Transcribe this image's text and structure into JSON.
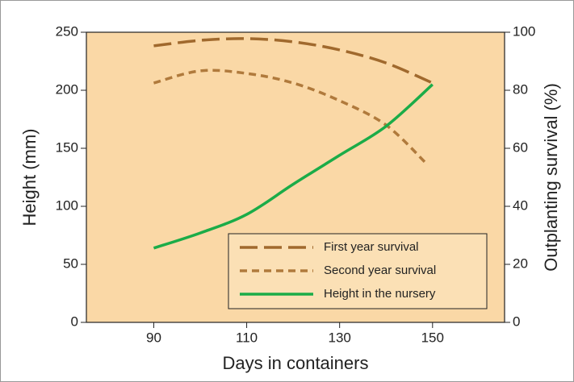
{
  "chart_data": {
    "type": "line",
    "xlabel": "Days in containers",
    "ylabel": "Height (mm)",
    "y2label": "Outplanting survival (%)",
    "xlim": [
      75.5,
      165.5
    ],
    "xticks": [
      90,
      110,
      130,
      150
    ],
    "ylim": [
      0,
      250
    ],
    "yticks": [
      0,
      50,
      100,
      150,
      200,
      250
    ],
    "y2lim": [
      0,
      100
    ],
    "y2ticks": [
      0,
      20,
      40,
      60,
      80,
      100
    ],
    "legend": "lower right",
    "series": [
      {
        "name": "First year survival",
        "color": "#a0692d",
        "style": "long-dash",
        "axis": "y2",
        "x": [
          90,
          100,
          110,
          120,
          130,
          140,
          150
        ],
        "values": [
          95.3,
          97.2,
          97.8,
          96.7,
          93.9,
          89.4,
          82.5
        ]
      },
      {
        "name": "Second year survival",
        "color": "#b07a3c",
        "style": "short-dash",
        "axis": "y2",
        "x": [
          90,
          100,
          110,
          120,
          130,
          140,
          148.7
        ],
        "values": [
          82.5,
          86.7,
          85.8,
          82.5,
          76.4,
          68,
          54.7
        ]
      },
      {
        "name": "Height in the nursery",
        "color": "#1bac48",
        "style": "solid",
        "x": [
          90,
          100,
          110,
          120,
          130,
          140,
          150
        ],
        "values": [
          64,
          77,
          93,
          119,
          144,
          169,
          205
        ]
      }
    ]
  }
}
